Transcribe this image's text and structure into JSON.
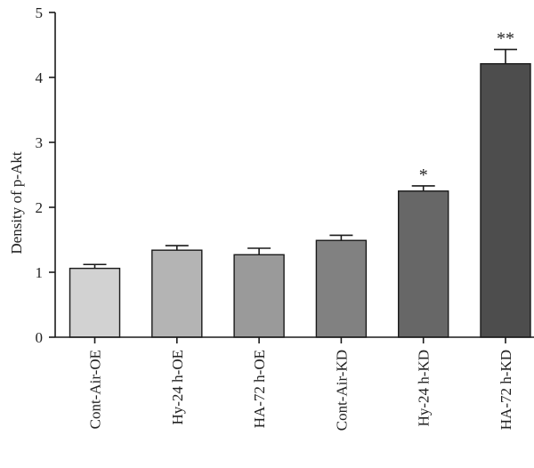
{
  "chart_data": {
    "type": "bar",
    "title": "",
    "xlabel": "",
    "ylabel": "Density of p-Akt",
    "ylim": [
      0,
      5
    ],
    "yticks": [
      0,
      1,
      2,
      3,
      4,
      5
    ],
    "categories": [
      "Cont-Air-OE",
      "Hy-24 h-OE",
      "HA-72 h-OE",
      "Cont-Air-KD",
      "Hy-24 h-KD",
      "HA-72 h-KD"
    ],
    "values": [
      1.06,
      1.34,
      1.27,
      1.49,
      2.25,
      4.21
    ],
    "errors": [
      0.06,
      0.07,
      0.1,
      0.08,
      0.08,
      0.22
    ],
    "significance": [
      "",
      "",
      "",
      "",
      "*",
      "**"
    ],
    "bar_colors": [
      "#d2d2d2",
      "#b4b4b4",
      "#9a9a9a",
      "#818181",
      "#676767",
      "#4d4d4d"
    ],
    "grid": false,
    "legend": "none"
  }
}
